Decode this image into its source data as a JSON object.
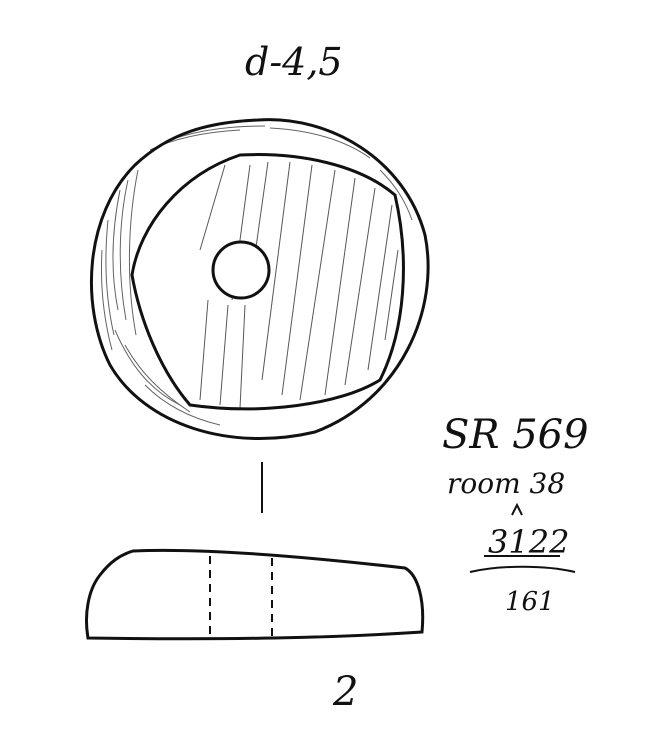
{
  "drawing": {
    "diameter_label": "d-4,5",
    "catalog_label": "SR 569",
    "room_label": "room 38",
    "context_number": "3122",
    "sub_number": "161",
    "figure_number": "2"
  },
  "colors": {
    "ink": "#111111",
    "paper": "#ffffff"
  }
}
